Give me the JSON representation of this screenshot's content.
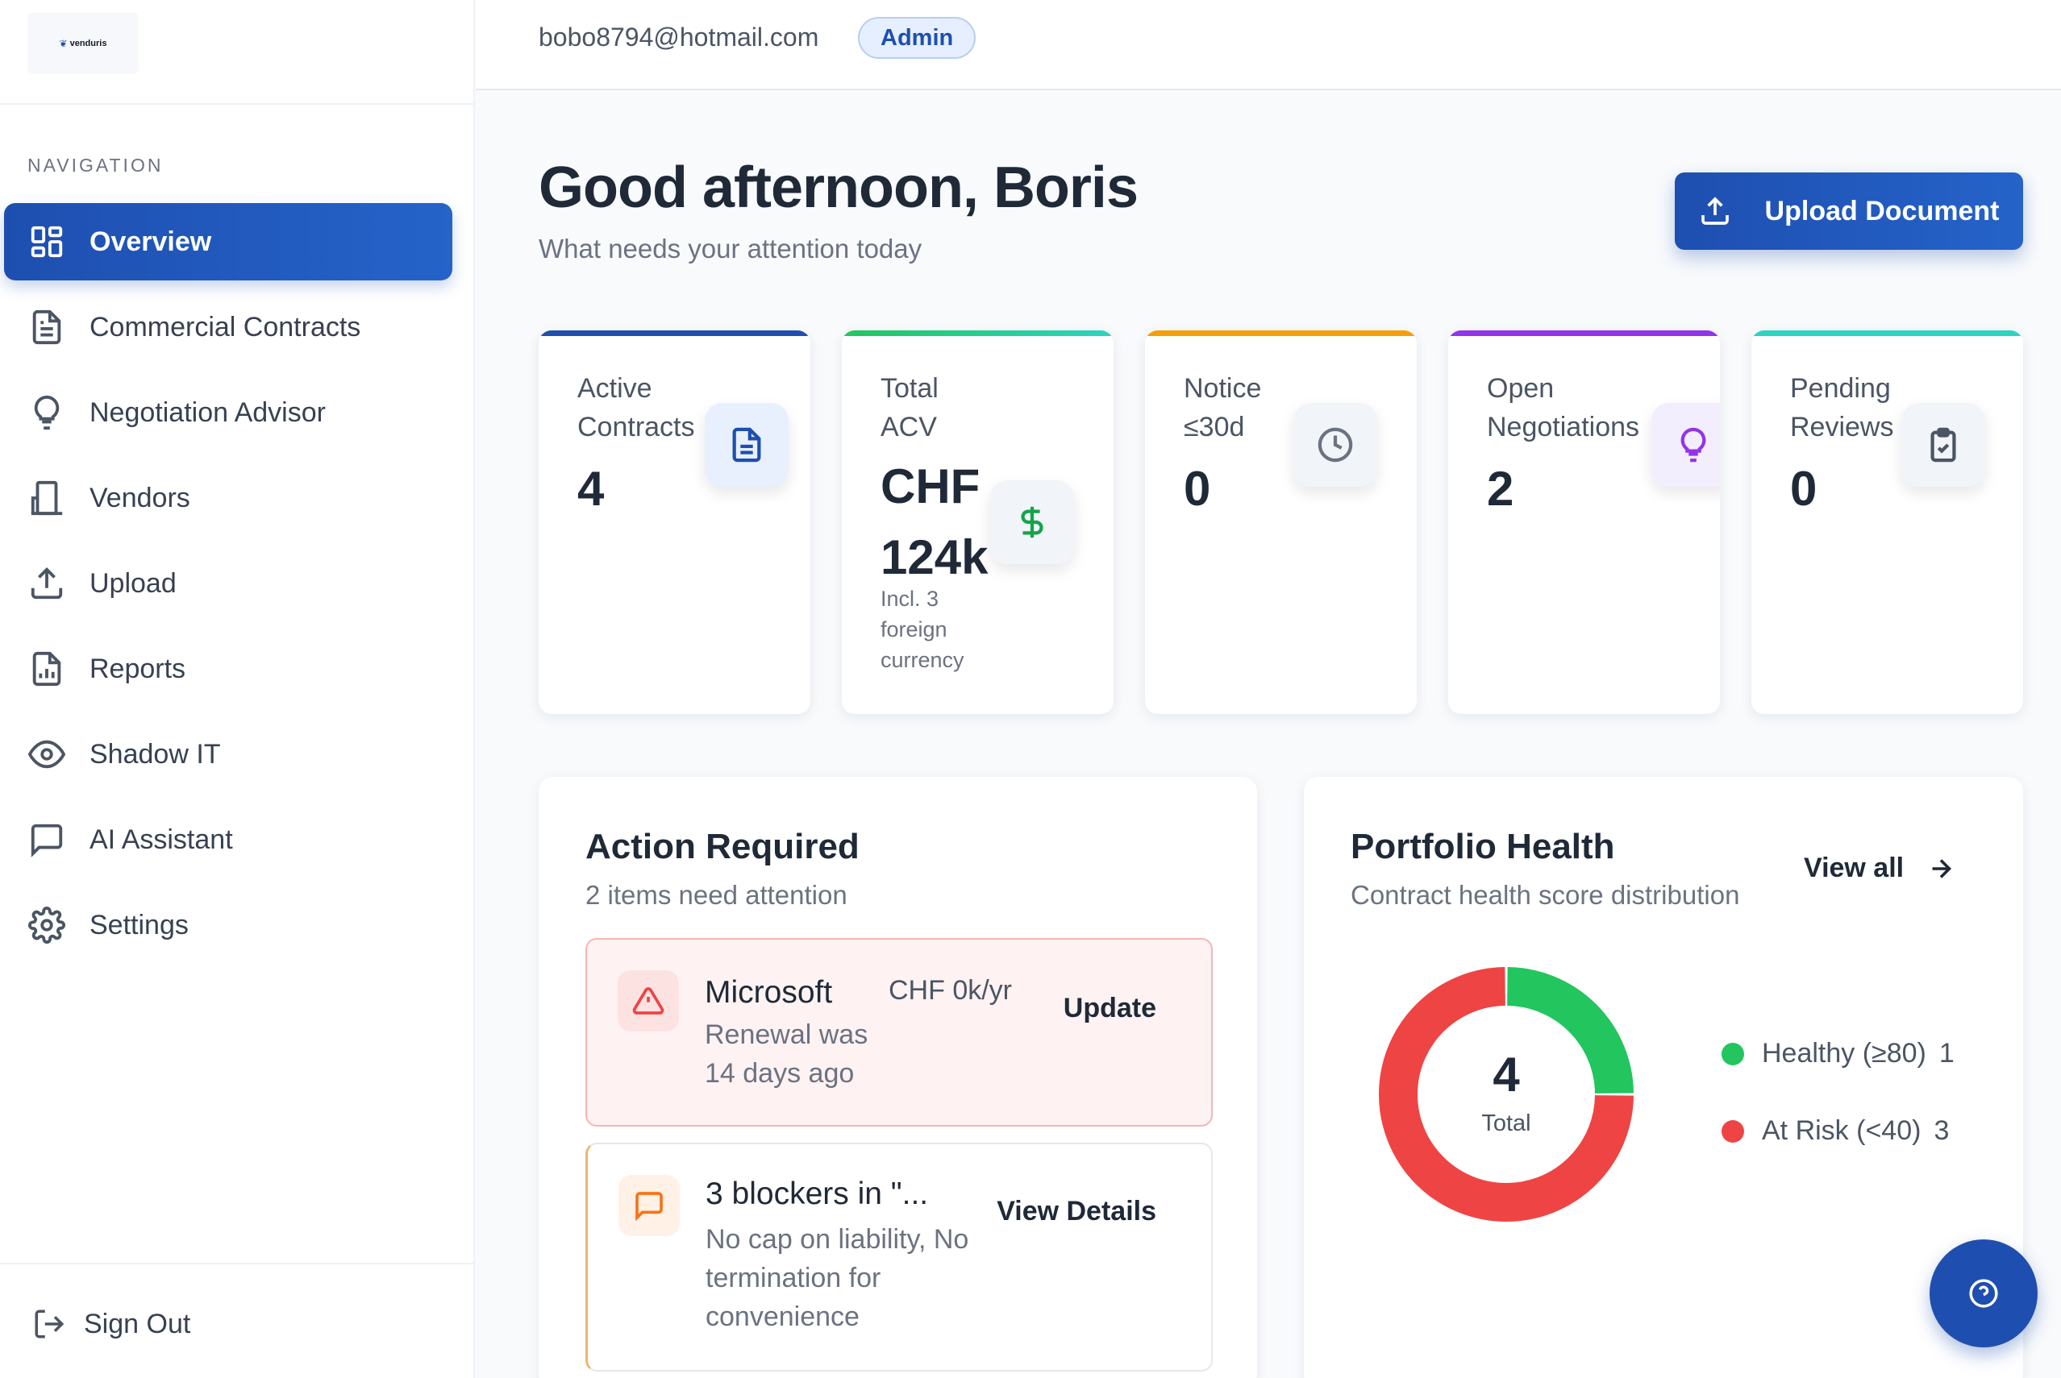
{
  "brand": {
    "logo_text": "venduris"
  },
  "sidebar": {
    "section_label": "NAVIGATION",
    "items": [
      {
        "label": "Overview",
        "icon": "grid-icon",
        "active": true
      },
      {
        "label": "Commercial Contracts",
        "icon": "document-icon"
      },
      {
        "label": "Negotiation Advisor",
        "icon": "lightbulb-icon"
      },
      {
        "label": "Vendors",
        "icon": "building-icon"
      },
      {
        "label": "Upload",
        "icon": "upload-icon"
      },
      {
        "label": "Reports",
        "icon": "report-icon"
      },
      {
        "label": "Shadow IT",
        "icon": "eye-icon"
      },
      {
        "label": "AI Assistant",
        "icon": "chat-icon"
      },
      {
        "label": "Settings",
        "icon": "gear-icon"
      }
    ],
    "signout_label": "Sign Out"
  },
  "header": {
    "email": "bobo8794@hotmail.com",
    "role": "Admin"
  },
  "main": {
    "greeting": "Good afternoon, Boris",
    "subtitle": "What needs your attention today",
    "upload_button": "Upload Document"
  },
  "stats": [
    {
      "label": "Active Contracts",
      "value": "4",
      "color": "#1e4fb0"
    },
    {
      "label": "Total ACV",
      "value": "CHF 124k",
      "note": "Incl. 3 foreign currency",
      "color": "#22c55e"
    },
    {
      "label": "Notice ≤30d",
      "value": "0",
      "color": "#f59e0b"
    },
    {
      "label": "Open Negotiations",
      "value": "2",
      "color": "#9333ea"
    },
    {
      "label": "Pending Reviews",
      "value": "0",
      "color": "#2dd4bf"
    }
  ],
  "actions": {
    "title": "Action Required",
    "subtitle": "2 items need attention",
    "items": [
      {
        "name": "Microsoft",
        "amount": "CHF 0k/yr",
        "desc": "Renewal was 14 days ago",
        "action": "Update"
      },
      {
        "name": "3 blockers in \"...",
        "desc": "No cap on liability, No termination for convenience",
        "action": "View Details"
      }
    ]
  },
  "portfolio": {
    "title": "Portfolio Health",
    "subtitle": "Contract health score distribution",
    "view_all": "View all",
    "total": "4",
    "total_label": "Total",
    "legend": [
      {
        "label": "Healthy (≥80)",
        "count": "1",
        "color": "#22c55e"
      },
      {
        "label": "At Risk (<40)",
        "count": "3",
        "color": "#ef4444"
      }
    ]
  },
  "chart_data": {
    "type": "pie",
    "title": "Portfolio Health",
    "categories": [
      "Healthy (≥80)",
      "At Risk (<40)"
    ],
    "values": [
      1,
      3
    ],
    "center_label": "4 Total"
  }
}
